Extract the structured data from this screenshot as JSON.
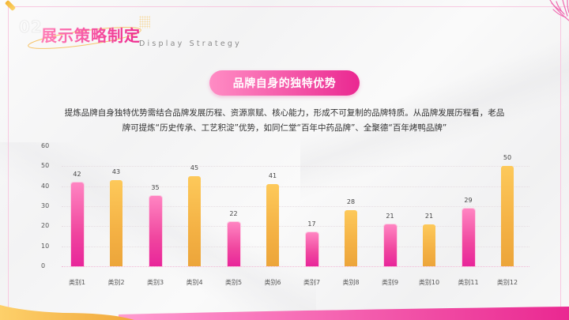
{
  "header": {
    "section_number": "02",
    "title": "展示策略制定",
    "subtitle": "Display Strategy"
  },
  "section": {
    "heading": "品牌自身的独特优势",
    "description_line1": "提炼品牌自身独特优势需结合品牌发展历程、资源禀赋、核心能力，形成不可复制的品牌特质。从品牌发展历程看，老品",
    "description_line2": "牌可提炼“历史传承、工艺积淀”优势，如同仁堂“百年中药品牌”、全聚德“百年烤鸭品牌”"
  },
  "colors": {
    "accent_pink": "#ea2891",
    "accent_pink_light": "#ff85c2",
    "accent_orange": "#f4b144",
    "frame_line": "#f8c8e0"
  },
  "chart_data": {
    "type": "bar",
    "title": "",
    "xlabel": "",
    "ylabel": "",
    "ylim": [
      0,
      60
    ],
    "yticks": [
      0,
      10,
      20,
      30,
      40,
      50,
      60
    ],
    "grid": true,
    "legend": "none",
    "categories": [
      "类别1",
      "类别2",
      "类别3",
      "类别4",
      "类别5",
      "类别6",
      "类别7",
      "类别8",
      "类别9",
      "类别10",
      "类别11",
      "类别12"
    ],
    "values": [
      42,
      43,
      35,
      45,
      22,
      41,
      17,
      28,
      21,
      21,
      29,
      50
    ],
    "bar_colors": [
      "pink",
      "orange",
      "pink",
      "orange",
      "pink",
      "orange",
      "pink",
      "orange",
      "pink",
      "orange",
      "pink",
      "orange"
    ],
    "data_labels": [
      "42",
      "43",
      "35",
      "45",
      "22",
      "41",
      "17",
      "28",
      "21",
      "21",
      "29",
      "50"
    ]
  }
}
